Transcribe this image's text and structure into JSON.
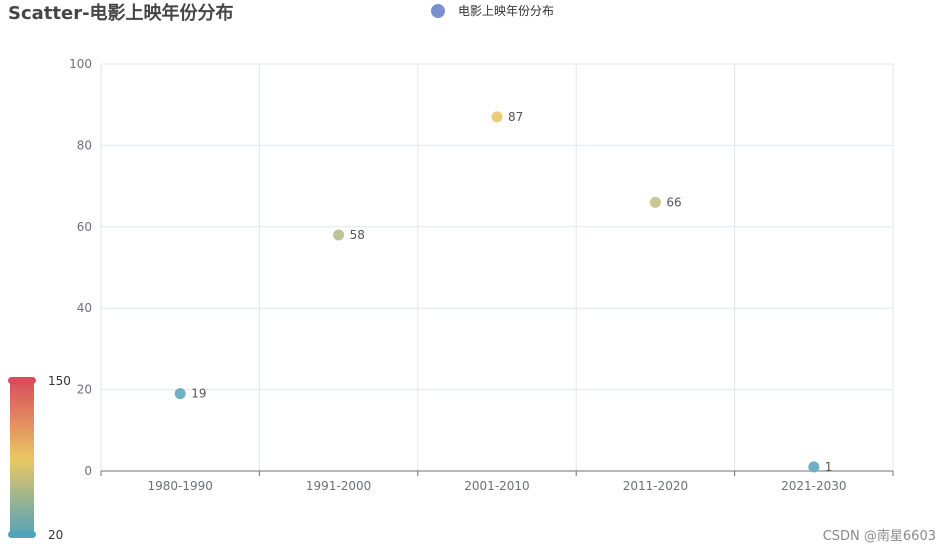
{
  "chart_data": {
    "type": "scatter",
    "title": "Scatter-电影上映年份分布",
    "categories": [
      "1980-1990",
      "1991-2000",
      "2001-2010",
      "2011-2020",
      "2021-2030"
    ],
    "series": [
      {
        "name": "电影上映年份分布",
        "values": [
          19,
          58,
          87,
          66,
          1
        ]
      }
    ],
    "ylim": [
      0,
      100
    ],
    "yticks": [
      0,
      20,
      40,
      60,
      80,
      100
    ],
    "grid": true,
    "legend": "top-center",
    "legend_color": "#7b8fcf",
    "visual_map": {
      "min": 20,
      "max": 150,
      "min_label": "20",
      "max_label": "150",
      "position": "bottom-left",
      "colors": [
        "#50a3ba",
        "#eac763",
        "#d94e5d"
      ]
    },
    "point_colors": [
      "#6fb0c7",
      "#bcc597",
      "#edcc79",
      "#c9c794",
      "#6fb0c7"
    ]
  },
  "watermark": "CSDN @南星6603"
}
